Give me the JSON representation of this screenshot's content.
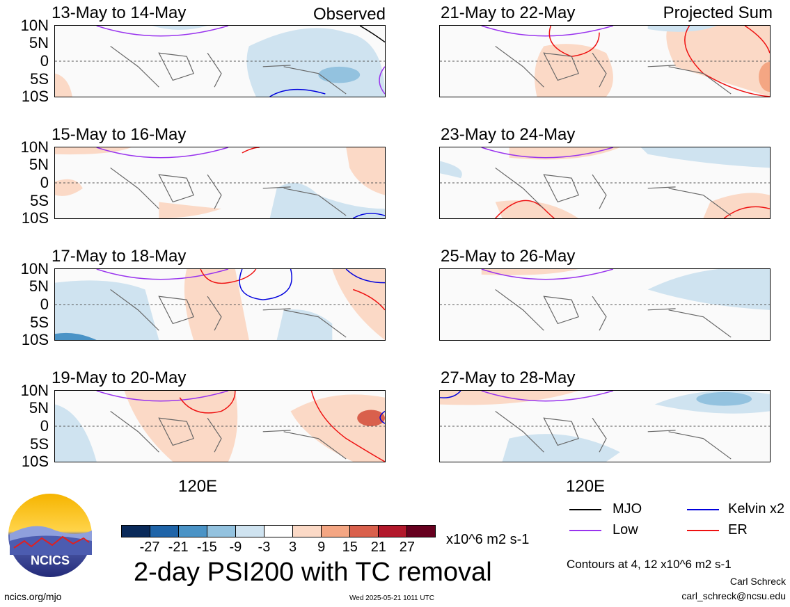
{
  "panels": [
    {
      "title": "13-May to 14-May",
      "corner": "Observed"
    },
    {
      "title": "15-May to 16-May",
      "corner": ""
    },
    {
      "title": "17-May to 18-May",
      "corner": ""
    },
    {
      "title": "19-May to 20-May",
      "corner": ""
    },
    {
      "title": "21-May to 22-May",
      "corner": "Projected Sum"
    },
    {
      "title": "23-May to 24-May",
      "corner": ""
    },
    {
      "title": "25-May to 26-May",
      "corner": ""
    },
    {
      "title": "27-May to 28-May",
      "corner": ""
    }
  ],
  "lat_labels": [
    "10N",
    "5N",
    "0",
    "5S",
    "10S"
  ],
  "lon_label": "120E",
  "colorbar": {
    "colors": [
      "#0a2a5a",
      "#1f64a8",
      "#4a93c6",
      "#93c2df",
      "#cfe3f0",
      "#ffffff",
      "#fbd9c6",
      "#f4a683",
      "#d9604c",
      "#b2182b",
      "#67001f"
    ],
    "ticks": [
      "-27",
      "-21",
      "-15",
      "-9",
      "-3",
      "3",
      "9",
      "15",
      "21",
      "27"
    ],
    "units": "x10^6 m2 s-1"
  },
  "title": "2-day PSI200 with TC removal",
  "legend": [
    {
      "label": "MJO",
      "color": "#000000"
    },
    {
      "label": "Kelvin x2",
      "color": "#0000dd"
    },
    {
      "label": "Low",
      "color": "#9933ee"
    },
    {
      "label": "ER",
      "color": "#ee1111"
    }
  ],
  "contour_note": "Contours at 4, 12 x10^6 m2 s-1",
  "author": "Carl Schreck",
  "email": "carl_schreck@ncsu.edu",
  "site": "ncics.org/mjo",
  "timestamp": "Wed 2025-05-21 1011 UTC",
  "logo_text": "NCICS"
}
